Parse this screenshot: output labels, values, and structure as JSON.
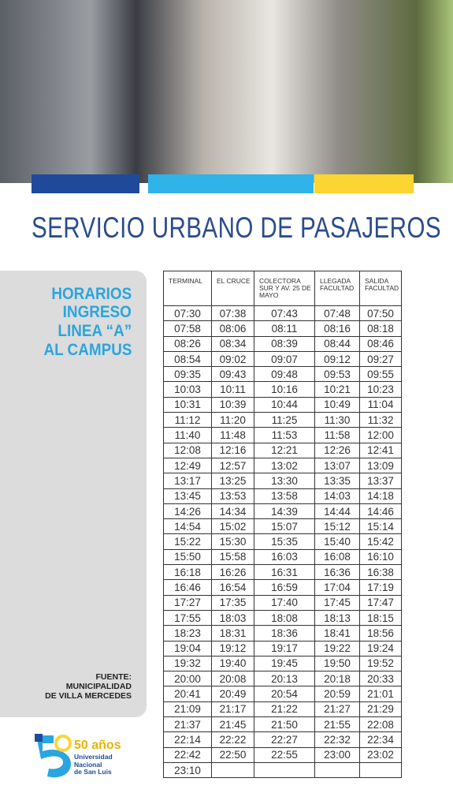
{
  "header": {
    "title": "SERVICIO URBANO DE PASAJEROS"
  },
  "side": {
    "heading": [
      "HORARIOS",
      "INGRESO",
      "LINEA “A”",
      "AL CAMPUS"
    ],
    "source": [
      "FUENTE:",
      "MUNICIPALIDAD",
      "DE VILLA MERCEDES"
    ]
  },
  "logo": {
    "years": "50 años",
    "name": [
      "Universidad",
      "Nacional",
      "de San Luis"
    ]
  },
  "table": {
    "columns": [
      "TERMINAL",
      "EL CRUCE",
      "COLECTORA SUR Y AV. 25 DE MAYO",
      "LLEGADA FACULTAD",
      "SALIDA FACULTAD"
    ],
    "rows": [
      [
        "07:30",
        "07:38",
        "07:43",
        "07:48",
        "07:50"
      ],
      [
        "07:58",
        "08:06",
        "08:11",
        "08:16",
        "08:18"
      ],
      [
        "08:26",
        "08:34",
        "08:39",
        "08:44",
        "08:46"
      ],
      [
        "08:54",
        "09:02",
        "09:07",
        "09:12",
        "09:27"
      ],
      [
        "09:35",
        "09:43",
        "09:48",
        "09:53",
        "09:55"
      ],
      [
        "10:03",
        "10:11",
        "10:16",
        "10:21",
        "10:23"
      ],
      [
        "10:31",
        "10:39",
        "10:44",
        "10:49",
        "11:04"
      ],
      [
        "11:12",
        "11:20",
        "11:25",
        "11:30",
        "11:32"
      ],
      [
        "11:40",
        "11:48",
        "11:53",
        "11:58",
        "12:00"
      ],
      [
        "12:08",
        "12:16",
        "12:21",
        "12:26",
        "12:41"
      ],
      [
        "12:49",
        "12:57",
        "13:02",
        "13:07",
        "13:09"
      ],
      [
        "13:17",
        "13:25",
        "13:30",
        "13:35",
        "13:37"
      ],
      [
        "13:45",
        "13:53",
        "13:58",
        "14:03",
        "14:18"
      ],
      [
        "14:26",
        "14:34",
        "14:39",
        "14:44",
        "14:46"
      ],
      [
        "14:54",
        "15:02",
        "15:07",
        "15:12",
        "15:14"
      ],
      [
        "15:22",
        "15:30",
        "15:35",
        "15:40",
        "15:42"
      ],
      [
        "15:50",
        "15:58",
        "16:03",
        "16:08",
        "16:10"
      ],
      [
        "16:18",
        "16:26",
        "16:31",
        "16:36",
        "16:38"
      ],
      [
        "16:46",
        "16:54",
        "16:59",
        "17:04",
        "17:19"
      ],
      [
        "17:27",
        "17:35",
        "17:40",
        "17:45",
        "17:47"
      ],
      [
        "17:55",
        "18:03",
        "18:08",
        "18:13",
        "18:15"
      ],
      [
        "18:23",
        "18:31",
        "18:36",
        "18:41",
        "18:56"
      ],
      [
        "19:04",
        "19:12",
        "19:17",
        "19:22",
        "19:24"
      ],
      [
        "19:32",
        "19:40",
        "19:45",
        "19:50",
        "19:52"
      ],
      [
        "20:00",
        "20:08",
        "20:13",
        "20:18",
        "20:33"
      ],
      [
        "20:41",
        "20:49",
        "20:54",
        "20:59",
        "21:01"
      ],
      [
        "21:09",
        "21:17",
        "21:22",
        "21:27",
        "21:29"
      ],
      [
        "21:37",
        "21:45",
        "21:50",
        "21:55",
        "22:08"
      ],
      [
        "22:14",
        "22:22",
        "22:27",
        "22:32",
        "22:34"
      ],
      [
        "22:42",
        "22:50",
        "22:55",
        "23:00",
        "23:02"
      ],
      [
        "23:10"
      ]
    ]
  }
}
